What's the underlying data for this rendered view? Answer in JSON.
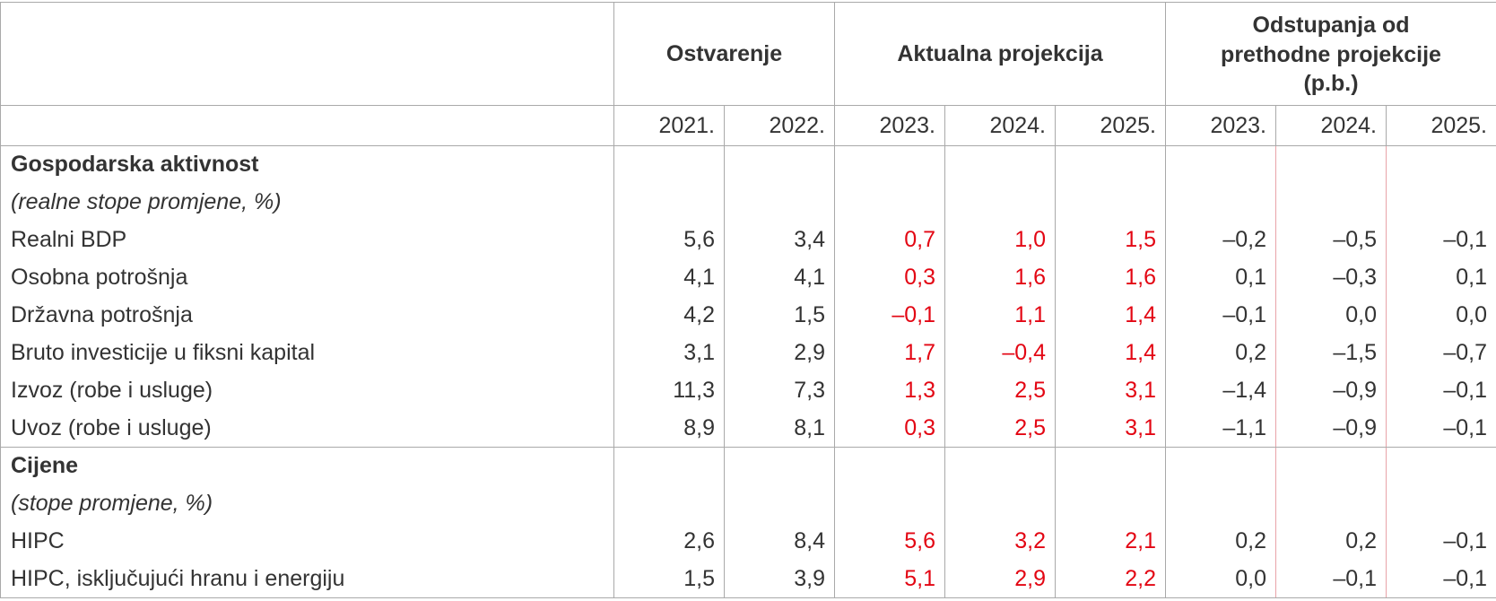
{
  "header": {
    "groups": [
      "Ostvarenje",
      "Aktualna projekcija",
      "Odstupanja od prethodne projekcije (p.b.)"
    ],
    "group3_lines": [
      "Odstupanja od",
      "prethodne projekcije",
      "(p.b.)"
    ],
    "years": [
      "2021.",
      "2022.",
      "2023.",
      "2024.",
      "2025.",
      "2023.",
      "2024.",
      "2025."
    ]
  },
  "sections": [
    {
      "title": "Gospodarska aktivnost",
      "subtitle": "(realne stope promjene, %)",
      "rows": [
        {
          "label": "Realni BDP",
          "values": [
            "5,6",
            "3,4",
            "0,7",
            "1,0",
            "1,5",
            "–0,2",
            "–0,5",
            "–0,1"
          ]
        },
        {
          "label": "Osobna potrošnja",
          "values": [
            "4,1",
            "4,1",
            "0,3",
            "1,6",
            "1,6",
            "0,1",
            "–0,3",
            "0,1"
          ]
        },
        {
          "label": "Državna potrošnja",
          "values": [
            "4,2",
            "1,5",
            "–0,1",
            "1,1",
            "1,4",
            "–0,1",
            "0,0",
            "0,0"
          ]
        },
        {
          "label": "Bruto investicije u fiksni kapital",
          "values": [
            "3,1",
            "2,9",
            "1,7",
            "–0,4",
            "1,4",
            "0,2",
            "–1,5",
            "–0,7"
          ]
        },
        {
          "label": "Izvoz (robe i usluge)",
          "values": [
            "11,3",
            "7,3",
            "1,3",
            "2,5",
            "3,1",
            "–1,4",
            "–0,9",
            "–0,1"
          ]
        },
        {
          "label": "Uvoz (robe i usluge)",
          "values": [
            "8,9",
            "8,1",
            "0,3",
            "2,5",
            "3,1",
            "–1,1",
            "–0,9",
            "–0,1"
          ]
        }
      ]
    },
    {
      "title": "Cijene",
      "subtitle": "(stope promjene, %)",
      "rows": [
        {
          "label": "HIPC",
          "values": [
            "2,6",
            "8,4",
            "5,6",
            "3,2",
            "2,1",
            "0,2",
            "0,2",
            "–0,1"
          ]
        },
        {
          "label": "HIPC, isključujući hranu i energiju",
          "values": [
            "1,5",
            "3,9",
            "5,1",
            "2,9",
            "2,2",
            "0,0",
            "–0,1",
            "–0,1"
          ]
        }
      ]
    }
  ],
  "colors": {
    "projection_text": "#e30613",
    "body_text": "#333333",
    "grid": "#a9a9a9"
  }
}
